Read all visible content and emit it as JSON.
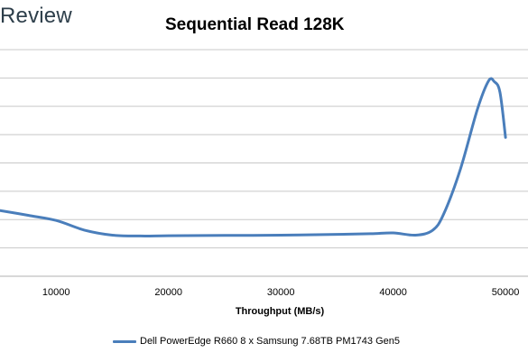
{
  "brand": "Review",
  "chart_data": {
    "type": "line",
    "title": "Sequential Read 128K",
    "xlabel": "Throughput (MB/s)",
    "ylabel": "",
    "xlim": [
      5000,
      52000
    ],
    "ylim": [
      0,
      8
    ],
    "grid": true,
    "legend": "bottom",
    "x_ticks": [
      10000,
      20000,
      30000,
      40000,
      50000
    ],
    "series": [
      {
        "name": "Dell PowerEdge R660 8 x Samsung 7.68TB PM1743 Gen5",
        "color": "#4a7ebb",
        "x": [
          5000,
          7500,
          10000,
          12500,
          15000,
          17500,
          20000,
          25000,
          30000,
          35000,
          38000,
          40000,
          42000,
          43500,
          44500,
          46000,
          47500,
          48500,
          49000,
          49500,
          50000
        ],
        "y": [
          2.32,
          2.15,
          1.97,
          1.63,
          1.45,
          1.42,
          1.43,
          1.44,
          1.45,
          1.48,
          1.5,
          1.53,
          1.45,
          1.62,
          2.2,
          3.8,
          5.9,
          6.9,
          6.87,
          6.5,
          4.9
        ]
      }
    ]
  }
}
